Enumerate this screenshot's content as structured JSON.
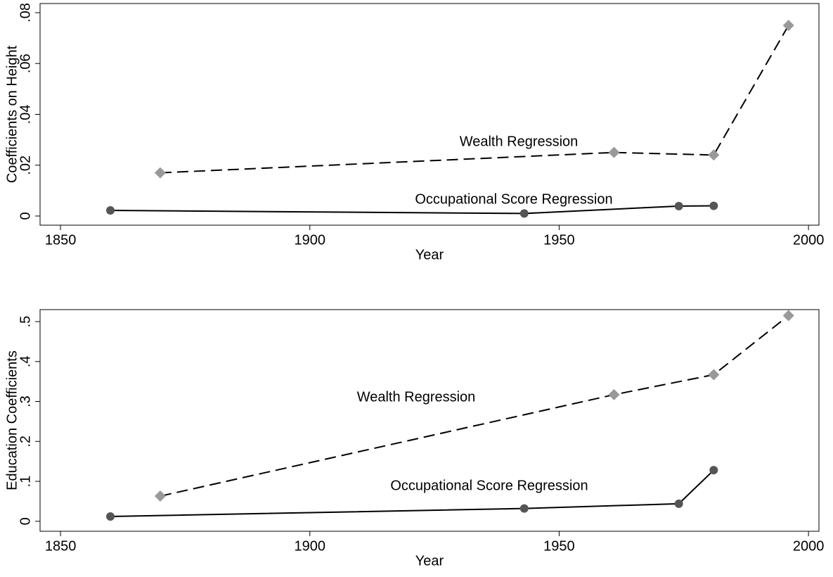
{
  "chart_data": [
    {
      "type": "line",
      "x_label": "Year",
      "y_label": "Coefficients on Height",
      "xlim": [
        1845.9,
        2002.1
      ],
      "xticks": [
        1850,
        1900,
        1950,
        2000
      ],
      "ylim": [
        -0.0036,
        0.0836
      ],
      "yticks": [
        0,
        {
          "value": 0.02,
          "label": ".02"
        },
        {
          "value": 0.04,
          "label": ".04"
        },
        {
          "value": 0.06,
          "label": ".06"
        },
        {
          "value": 0.08,
          "label": ".08"
        }
      ],
      "series": [
        {
          "name": "Occupational Score Regression",
          "color": "#555555",
          "marker": "circle",
          "dash": false,
          "x": [
            1860,
            1943,
            1974,
            1981
          ],
          "values": [
            0.0022,
            0.001,
            0.0039,
            0.004
          ]
        },
        {
          "name": "Wealth Regression",
          "color": "#999999",
          "marker": "diamond",
          "dash": true,
          "x": [
            1870,
            1961,
            1981,
            1996
          ],
          "values": [
            0.017,
            0.025,
            0.024,
            0.075
          ]
        }
      ]
    },
    {
      "type": "line",
      "x_label": "Year",
      "y_label": "Education Coefficients",
      "xlim": [
        1845.9,
        2002.1
      ],
      "xticks": [
        1850,
        1900,
        1950,
        2000
      ],
      "ylim": [
        -0.025,
        0.53
      ],
      "yticks": [
        0,
        {
          "value": 0.1,
          "label": ".1"
        },
        {
          "value": 0.2,
          "label": ".2"
        },
        {
          "value": 0.3,
          "label": ".3"
        },
        {
          "value": 0.4,
          "label": ".4"
        },
        {
          "value": 0.5,
          "label": ".5"
        }
      ],
      "series": [
        {
          "name": "Occupational Score Regression",
          "color": "#555555",
          "marker": "circle",
          "dash": false,
          "x": [
            1860,
            1943,
            1974,
            1981
          ],
          "values": [
            0.012,
            0.032,
            0.044,
            0.128
          ]
        },
        {
          "name": "Wealth Regression",
          "color": "#999999",
          "marker": "diamond",
          "dash": true,
          "x": [
            1870,
            1961,
            1981,
            1996
          ],
          "values": [
            0.063,
            0.317,
            0.367,
            0.515
          ]
        }
      ]
    }
  ]
}
